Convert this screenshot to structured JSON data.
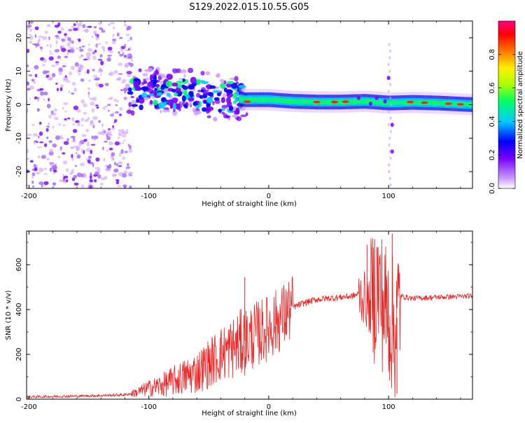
{
  "title": "S129.2022.015.10.55.G05",
  "chart_data": [
    {
      "type": "heatmap",
      "title": "S129.2022.015.10.55.G05",
      "xlabel": "Height of straight line (km)",
      "ylabel": "Frequency (Hz)",
      "xlim": [
        -202,
        170
      ],
      "ylim": [
        -25,
        25
      ],
      "x_ticks": [
        -200,
        -100,
        0,
        100
      ],
      "x_tick_labels": [
        "-200",
        "-100",
        "0",
        "100"
      ],
      "y_ticks": [
        -20,
        -10,
        0,
        10,
        20
      ],
      "y_tick_labels": [
        "-20",
        "-10",
        "0",
        "10",
        "20"
      ],
      "colorbar": {
        "label": "Normalized spectral amplitude",
        "range": [
          0,
          1
        ],
        "ticks": [
          0,
          0.2,
          0.4,
          0.6,
          0.8
        ],
        "tick_labels": [
          "0.0",
          "0.2",
          "0.4",
          "0.6",
          "0.8"
        ],
        "colors": [
          "#ffffff",
          "#cc99ff",
          "#7700ff",
          "#0000ff",
          "#00ccff",
          "#00ff66",
          "#aaff00",
          "#ffee00",
          "#ff7700",
          "#ff0000",
          "#ff0088"
        ]
      },
      "ridge": {
        "x": [
          -120,
          -100,
          -80,
          -60,
          -40,
          -20,
          0,
          20,
          40,
          60,
          80,
          100,
          120,
          140,
          170
        ],
        "frequency": [
          3,
          4,
          4,
          3,
          2.5,
          1.5,
          1.5,
          1,
          0.8,
          0.8,
          1,
          0.5,
          0.7,
          0.5,
          0
        ]
      },
      "noise_region": {
        "x_from": -202,
        "x_to": -118
      }
    },
    {
      "type": "line",
      "title": "",
      "xlabel": "Height of straight line (km)",
      "ylabel": "SNR (10 * v/v)",
      "xlim": [
        -202,
        170
      ],
      "ylim": [
        0,
        750
      ],
      "x_ticks": [
        -200,
        -100,
        0,
        100
      ],
      "x_tick_labels": [
        "-200",
        "-100",
        "0",
        "100"
      ],
      "y_ticks": [
        0,
        200,
        400,
        600
      ],
      "y_tick_labels": [
        "0",
        "200",
        "400",
        "600"
      ],
      "series": [
        {
          "name": "SNR",
          "color": "#ee2222",
          "x": [
            -202,
            -180,
            -160,
            -140,
            -120,
            -110,
            -100,
            -90,
            -80,
            -70,
            -60,
            -50,
            -40,
            -30,
            -20,
            -10,
            0,
            10,
            20,
            30,
            40,
            60,
            70,
            75,
            80,
            85,
            90,
            95,
            100,
            105,
            110,
            120,
            140,
            170
          ],
          "values": [
            10,
            12,
            14,
            16,
            20,
            30,
            50,
            60,
            80,
            100,
            120,
            160,
            200,
            230,
            260,
            290,
            320,
            360,
            410,
            430,
            445,
            455,
            460,
            470,
            450,
            400,
            520,
            430,
            380,
            300,
            460,
            450,
            455,
            460
          ]
        }
      ],
      "peaks": [
        {
          "x": -20,
          "y": 545
        },
        {
          "x": 82,
          "y": 690
        },
        {
          "x": 103,
          "y": 740
        },
        {
          "x": 107,
          "y": 25
        }
      ]
    }
  ]
}
